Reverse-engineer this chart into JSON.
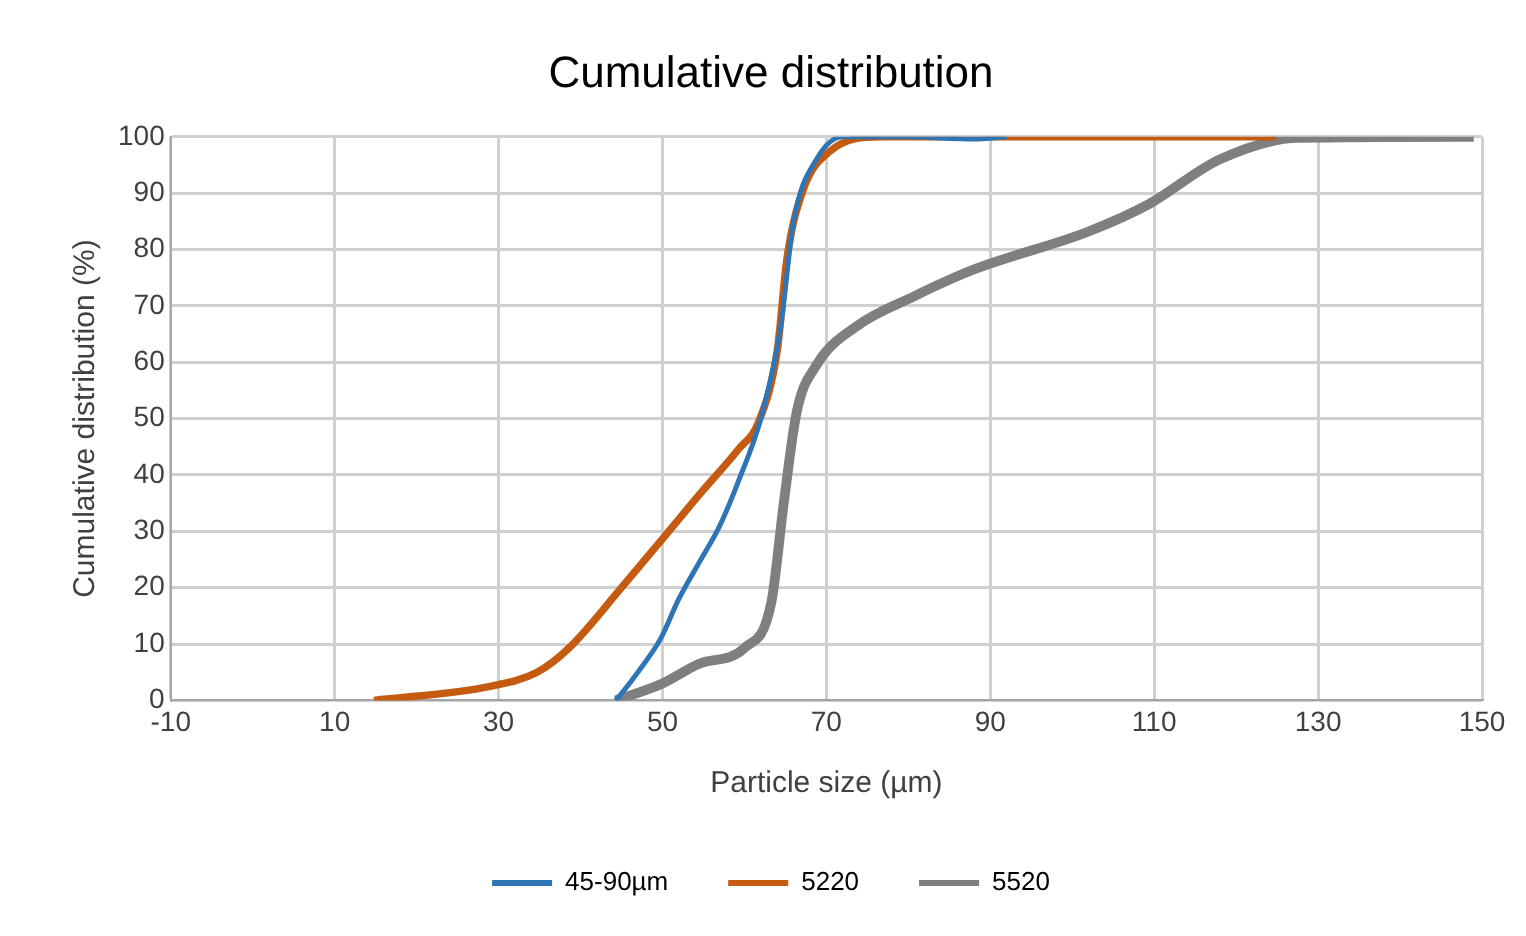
{
  "chart_data": {
    "type": "line",
    "title": "Cumulative distribution",
    "xlabel": "Particle size (µm)",
    "ylabel": "Cumulative distribution (%)",
    "xlim": [
      -10,
      150
    ],
    "xticks": [
      -10,
      10,
      30,
      50,
      70,
      90,
      110,
      130,
      150
    ],
    "ylim": [
      0,
      100
    ],
    "yticks": [
      0,
      10,
      20,
      30,
      40,
      50,
      60,
      70,
      80,
      90,
      100
    ],
    "grid": true,
    "legend": "bottom",
    "marker": "none",
    "line_style": "solid",
    "series": [
      {
        "name": "45-90µm",
        "color": "#2e75b6",
        "x": [
          44.3,
          45,
          47,
          49.8,
          52,
          54.5,
          57,
          59.3,
          62,
          64.4,
          66,
          68.8,
          72,
          80,
          88,
          92
        ],
        "values": [
          0,
          1.2,
          5,
          11,
          18,
          24.5,
          31,
          39,
          50,
          66,
          85,
          96,
          100,
          100,
          99.6,
          100
        ]
      },
      {
        "name": "5220",
        "color": "#c55a11",
        "x": [
          14.8,
          29,
          34.7,
          38.6,
          45,
          49.8,
          54.5,
          59.3,
          61.7,
          64,
          65.2,
          67.2,
          70.4,
          76.7,
          100,
          124.8
        ],
        "values": [
          0,
          2.5,
          5,
          9.3,
          20,
          28.3,
          36.5,
          44.6,
          49.3,
          62,
          78.5,
          90.7,
          97.4,
          100,
          100,
          100
        ]
      },
      {
        "name": "5520",
        "color": "#7f7f7f",
        "x": [
          44.3,
          50,
          54.5,
          60,
          63.3,
          64.8,
          66.4,
          68.8,
          73.6,
          80.7,
          87.9,
          102,
          109.3,
          118,
          127.5,
          149
        ],
        "values": [
          0,
          3,
          6.5,
          9.3,
          17.5,
          35,
          51.3,
          59.5,
          66.3,
          71.7,
          76.4,
          83.2,
          88,
          96,
          99.8,
          100
        ]
      }
    ]
  }
}
